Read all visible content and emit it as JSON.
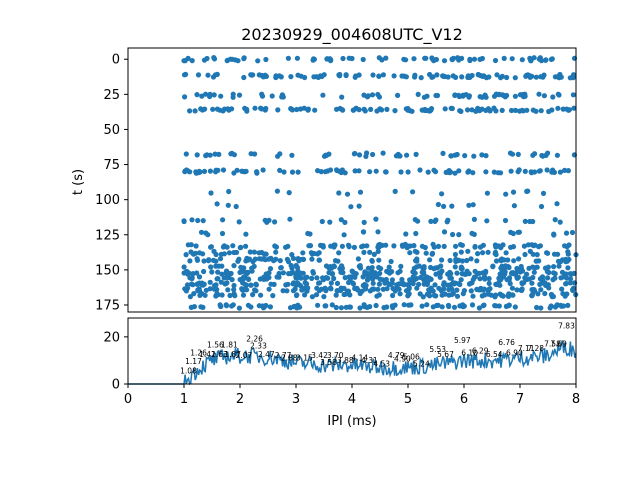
{
  "colors": {
    "series": "#1f77b4",
    "axes": "#000000",
    "background": "#ffffff"
  },
  "chart_data": [
    {
      "type": "scatter",
      "title": "20230929_004608UTC_V12",
      "xlabel": "",
      "ylabel": "t (s)",
      "xlim": [
        0,
        8
      ],
      "ylim": [
        180,
        -8
      ],
      "y_inverted": true,
      "yticks": [
        0,
        25,
        50,
        75,
        100,
        125,
        150,
        175
      ],
      "ytick_labels": [
        "0",
        "25",
        "50",
        "75",
        "100",
        "125",
        "150",
        "175"
      ],
      "x_start": 1.0,
      "time_bands": [
        {
          "t": 0,
          "density": 0.55
        },
        {
          "t": 12,
          "density": 0.75
        },
        {
          "t": 26,
          "density": 0.5
        },
        {
          "t": 36,
          "density": 0.75
        },
        {
          "t": 68,
          "density": 0.4
        },
        {
          "t": 80,
          "density": 0.65
        },
        {
          "t": 95,
          "density": 0.12
        },
        {
          "t": 104,
          "density": 0.1
        },
        {
          "t": 115,
          "density": 0.25
        },
        {
          "t": 124,
          "density": 0.2
        },
        {
          "t": 133,
          "density": 0.6
        },
        {
          "t": 138,
          "density": 0.45
        },
        {
          "t": 143,
          "density": 0.6
        },
        {
          "t": 148,
          "density": 0.55
        },
        {
          "t": 152,
          "density": 0.85
        },
        {
          "t": 156,
          "density": 0.85
        },
        {
          "t": 160,
          "density": 0.8
        },
        {
          "t": 164,
          "density": 0.8
        },
        {
          "t": 168,
          "density": 0.6
        },
        {
          "t": 176,
          "density": 0.65
        }
      ],
      "grid": false,
      "legend": "none"
    },
    {
      "type": "line",
      "xlabel": "IPI (ms)",
      "ylabel": "",
      "xlim": [
        0,
        8
      ],
      "ylim": [
        0,
        28
      ],
      "xticks": [
        0,
        1,
        2,
        3,
        4,
        5,
        6,
        7,
        8
      ],
      "xtick_labels": [
        "0",
        "1",
        "2",
        "3",
        "4",
        "5",
        "6",
        "7",
        "8"
      ],
      "yticks": [
        0,
        20
      ],
      "ytick_labels": [
        "0",
        "20"
      ],
      "series": [
        {
          "anchors": [
            [
              0,
              0
            ],
            [
              1.0,
              0
            ],
            [
              1.1,
              3
            ],
            [
              1.3,
              7
            ],
            [
              1.5,
              10
            ],
            [
              1.8,
              12
            ],
            [
              2.2,
              12
            ],
            [
              2.6,
              11
            ],
            [
              3.0,
              9
            ],
            [
              3.5,
              8
            ],
            [
              4.0,
              8
            ],
            [
              4.5,
              7
            ],
            [
              5.0,
              7
            ],
            [
              5.5,
              8
            ],
            [
              6.0,
              10
            ],
            [
              6.5,
              10
            ],
            [
              7.0,
              11
            ],
            [
              7.5,
              12
            ],
            [
              7.8,
              16
            ],
            [
              8.0,
              14
            ]
          ]
        }
      ],
      "peak_labels": [
        {
          "x": 1.08,
          "y": 4.5,
          "text": "1.08"
        },
        {
          "x": 1.17,
          "y": 8.5,
          "text": "1.17"
        },
        {
          "x": 1.26,
          "y": 12,
          "text": "1.26"
        },
        {
          "x": 1.42,
          "y": 11.5,
          "text": "1.42"
        },
        {
          "x": 1.56,
          "y": 15.5,
          "text": "1.56"
        },
        {
          "x": 1.63,
          "y": 11.5,
          "text": "1.63"
        },
        {
          "x": 1.81,
          "y": 15.5,
          "text": "1.81"
        },
        {
          "x": 1.87,
          "y": 11.5,
          "text": "1.87"
        },
        {
          "x": 2.07,
          "y": 11,
          "text": "2.07"
        },
        {
          "x": 2.26,
          "y": 18,
          "text": "2.26"
        },
        {
          "x": 2.33,
          "y": 15,
          "text": "2.33"
        },
        {
          "x": 2.47,
          "y": 11.5,
          "text": "2.47"
        },
        {
          "x": 2.77,
          "y": 11,
          "text": "2.77"
        },
        {
          "x": 2.88,
          "y": 10,
          "text": "2.88"
        },
        {
          "x": 3.15,
          "y": 10,
          "text": "3.15"
        },
        {
          "x": 3.42,
          "y": 11,
          "text": "3.42"
        },
        {
          "x": 3.58,
          "y": 8,
          "text": "3.58"
        },
        {
          "x": 3.7,
          "y": 11,
          "text": "3.70"
        },
        {
          "x": 3.88,
          "y": 9,
          "text": "3.88"
        },
        {
          "x": 4.14,
          "y": 10,
          "text": "4.14"
        },
        {
          "x": 4.31,
          "y": 9,
          "text": "4.31"
        },
        {
          "x": 4.53,
          "y": 7.5,
          "text": "4.53"
        },
        {
          "x": 4.79,
          "y": 11,
          "text": "4.79"
        },
        {
          "x": 4.9,
          "y": 9.5,
          "text": "4.90"
        },
        {
          "x": 5.06,
          "y": 10.5,
          "text": "5.06"
        },
        {
          "x": 5.24,
          "y": 7.5,
          "text": "5.24"
        },
        {
          "x": 5.53,
          "y": 13.5,
          "text": "5.53"
        },
        {
          "x": 5.67,
          "y": 11.5,
          "text": "5.67"
        },
        {
          "x": 5.97,
          "y": 17.5,
          "text": "5.97"
        },
        {
          "x": 6.1,
          "y": 12,
          "text": "6.10"
        },
        {
          "x": 6.29,
          "y": 13,
          "text": "6.29"
        },
        {
          "x": 6.54,
          "y": 11.5,
          "text": "6.54"
        },
        {
          "x": 6.76,
          "y": 16.5,
          "text": "6.76"
        },
        {
          "x": 6.9,
          "y": 12,
          "text": "6.90"
        },
        {
          "x": 7.11,
          "y": 14,
          "text": "7.11"
        },
        {
          "x": 7.28,
          "y": 14,
          "text": "7.28"
        },
        {
          "x": 7.58,
          "y": 16,
          "text": "7.58"
        },
        {
          "x": 7.69,
          "y": 16,
          "text": "7.69"
        },
        {
          "x": 7.83,
          "y": 23.5,
          "text": "7.83"
        }
      ],
      "grid": false,
      "legend": "none"
    }
  ]
}
